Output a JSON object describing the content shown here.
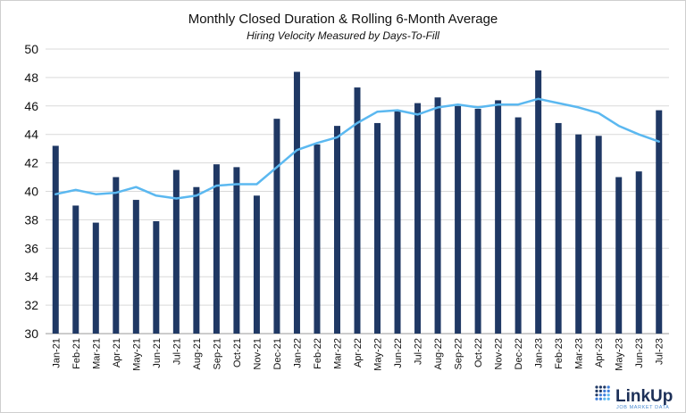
{
  "chart_data": {
    "type": "bar",
    "title": "Monthly Closed Duration & Rolling 6-Month Average",
    "subtitle": "Hiring Velocity Measured by Days-To-Fill",
    "xlabel": "",
    "ylabel": "",
    "ylim": [
      30,
      50
    ],
    "yticks": [
      30,
      32,
      34,
      36,
      38,
      40,
      42,
      44,
      46,
      48,
      50
    ],
    "grid": true,
    "legend": "none",
    "categories": [
      "Jan-21",
      "Feb-21",
      "Mar-21",
      "Apr-21",
      "May-21",
      "Jun-21",
      "Jul-21",
      "Aug-21",
      "Sep-21",
      "Oct-21",
      "Nov-21",
      "Dec-21",
      "Jan-22",
      "Feb-22",
      "Mar-22",
      "Apr-22",
      "May-22",
      "Jun-22",
      "Jul-22",
      "Aug-22",
      "Sep-22",
      "Oct-22",
      "Nov-22",
      "Dec-22",
      "Jan-23",
      "Feb-23",
      "Mar-23",
      "Apr-23",
      "May-23",
      "Jun-23",
      "Jul-23"
    ],
    "series": [
      {
        "type": "bar",
        "color": "#1f3864",
        "values": [
          43.2,
          39.0,
          37.8,
          41.0,
          39.4,
          37.9,
          41.5,
          40.3,
          41.9,
          41.7,
          39.7,
          45.1,
          48.4,
          43.3,
          44.6,
          47.3,
          44.8,
          45.7,
          46.2,
          46.6,
          46.0,
          45.8,
          46.4,
          45.2,
          48.5,
          44.8,
          44.0,
          43.9,
          41.0,
          41.4,
          45.7
        ]
      },
      {
        "type": "line",
        "color": "#5bb8f0",
        "values": [
          39.8,
          40.1,
          39.8,
          39.9,
          40.3,
          39.7,
          39.5,
          39.7,
          40.4,
          40.5,
          40.5,
          41.7,
          42.9,
          43.4,
          43.8,
          44.8,
          45.6,
          45.7,
          45.4,
          45.9,
          46.1,
          45.9,
          46.1,
          46.1,
          46.5,
          46.2,
          45.9,
          45.5,
          44.6,
          44.0,
          43.5
        ]
      }
    ]
  },
  "branding": {
    "name": "LinkUp",
    "tagline": "JOB MARKET DATA",
    "dot_colors": [
      "#1f3864",
      "#3c7dd9",
      "#5bb8f0"
    ]
  }
}
